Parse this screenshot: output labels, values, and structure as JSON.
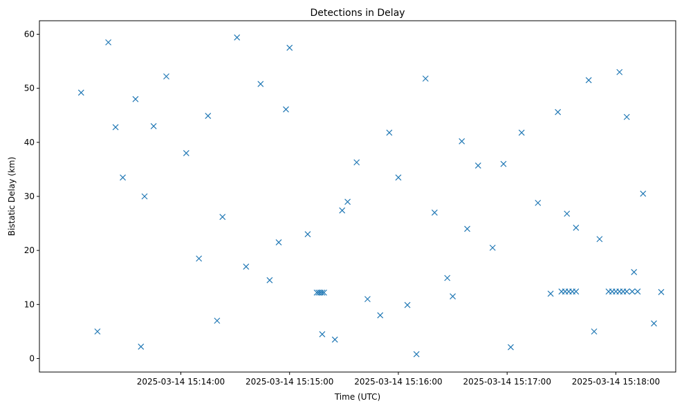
{
  "chart_data": {
    "type": "scatter",
    "title": "Detections in Delay",
    "xlabel": "Time (UTC)",
    "ylabel": "Bistatic Delay (km)",
    "xlim": [
      "2025-03-14 15:12:42",
      "2025-03-14 15:18:33"
    ],
    "ylim": [
      -2.5,
      62.5
    ],
    "x_ticks": [
      "2025-03-14 15:14:00",
      "2025-03-14 15:15:00",
      "2025-03-14 15:16:00",
      "2025-03-14 15:17:00",
      "2025-03-14 15:18:00"
    ],
    "y_ticks": [
      0,
      10,
      20,
      30,
      40,
      50,
      60
    ],
    "marker": "x",
    "grid": false,
    "legend": "none",
    "color": "#1f77b4",
    "series": [
      {
        "x": [
          "2025-03-14 15:13:20",
          "2025-03-14 15:13:24",
          "2025-03-14 15:13:28",
          "2025-03-14 15:13:35",
          "2025-03-14 15:13:40",
          "2025-03-14 15:13:52",
          "2025-03-14 15:14:03",
          "2025-03-14 15:14:15",
          "2025-03-14 15:14:23",
          "2025-03-14 15:14:31",
          "2025-03-14 15:14:44",
          "2025-03-14 15:14:49",
          "2025-03-14 15:14:58",
          "2025-03-14 15:15:10",
          "2025-03-14 15:15:18",
          "2025-03-14 15:15:29",
          "2025-03-14 15:15:37",
          "2025-03-14 15:15:43",
          "2025-03-14 15:15:55",
          "2025-03-14 15:16:05",
          "2025-03-14 15:16:15",
          "2025-03-14 15:16:20",
          "2025-03-14 15:16:27",
          "2025-03-14 15:16:35",
          "2025-03-14 15:16:44",
          "2025-03-14 15:16:52",
          "2025-03-14 15:17:08",
          "2025-03-14 15:17:17",
          "2025-03-14 15:17:28",
          "2025-03-14 15:17:33",
          "2025-03-14 15:17:45",
          "2025-03-14 15:17:51",
          "2025-03-14 15:18:06",
          "2025-03-14 15:18:15",
          "2025-03-14 15:18:21",
          "2025-03-14 15:13:14",
          "2025-03-14 15:13:38",
          "2025-03-14 15:14:10",
          "2025-03-14 15:14:36",
          "2025-03-14 15:15:00",
          "2025-03-14 15:15:25",
          "2025-03-14 15:15:50",
          "2025-03-14 15:16:10",
          "2025-03-14 15:16:38",
          "2025-03-14 15:17:02",
          "2025-03-14 15:17:24",
          "2025-03-14 15:17:48",
          "2025-03-14 15:18:10",
          "2025-03-14 15:13:05",
          "2025-03-14 15:13:45",
          "2025-03-14 15:14:20",
          "2025-03-14 15:14:54",
          "2025-03-14 15:15:32",
          "2025-03-14 15:16:00",
          "2025-03-14 15:16:30",
          "2025-03-14 15:16:58",
          "2025-03-14 15:17:38",
          "2025-03-14 15:18:02",
          "2025-03-14 15:18:25",
          "2025-03-14 15:15:15",
          "2025-03-14 15:15:16",
          "2025-03-14 15:15:17",
          "2025-03-14 15:15:18",
          "2025-03-14 15:15:19",
          "2025-03-14 15:17:30",
          "2025-03-14 15:17:32",
          "2025-03-14 15:17:34",
          "2025-03-14 15:17:36",
          "2025-03-14 15:17:38",
          "2025-03-14 15:17:56",
          "2025-03-14 15:17:58",
          "2025-03-14 15:18:00",
          "2025-03-14 15:18:02",
          "2025-03-14 15:18:04",
          "2025-03-14 15:18:06",
          "2025-03-14 15:18:09",
          "2025-03-14 15:18:12"
        ],
        "y": [
          58.5,
          42.8,
          33.5,
          48.0,
          30.0,
          52.2,
          38.0,
          44.9,
          26.2,
          59.4,
          50.8,
          14.5,
          46.1,
          23.0,
          4.5,
          27.4,
          36.3,
          11.0,
          41.8,
          9.9,
          51.8,
          27.0,
          14.9,
          40.2,
          35.7,
          20.5,
          41.8,
          28.8,
          45.6,
          26.8,
          51.5,
          22.1,
          44.7,
          30.5,
          6.5,
          5.0,
          2.2,
          18.5,
          17.0,
          57.5,
          3.5,
          8.0,
          0.8,
          24.0,
          2.1,
          12.0,
          5.0,
          16.0,
          49.2,
          43.0,
          7.0,
          21.5,
          29.0,
          33.5,
          11.5,
          36.0,
          24.2,
          53.0,
          12.3,
          12.2,
          12.2,
          12.2,
          12.2,
          12.2,
          12.4,
          12.4,
          12.4,
          12.4,
          12.4,
          12.4,
          12.4,
          12.4,
          12.4,
          12.4,
          12.4,
          12.4,
          12.4
        ]
      }
    ]
  }
}
